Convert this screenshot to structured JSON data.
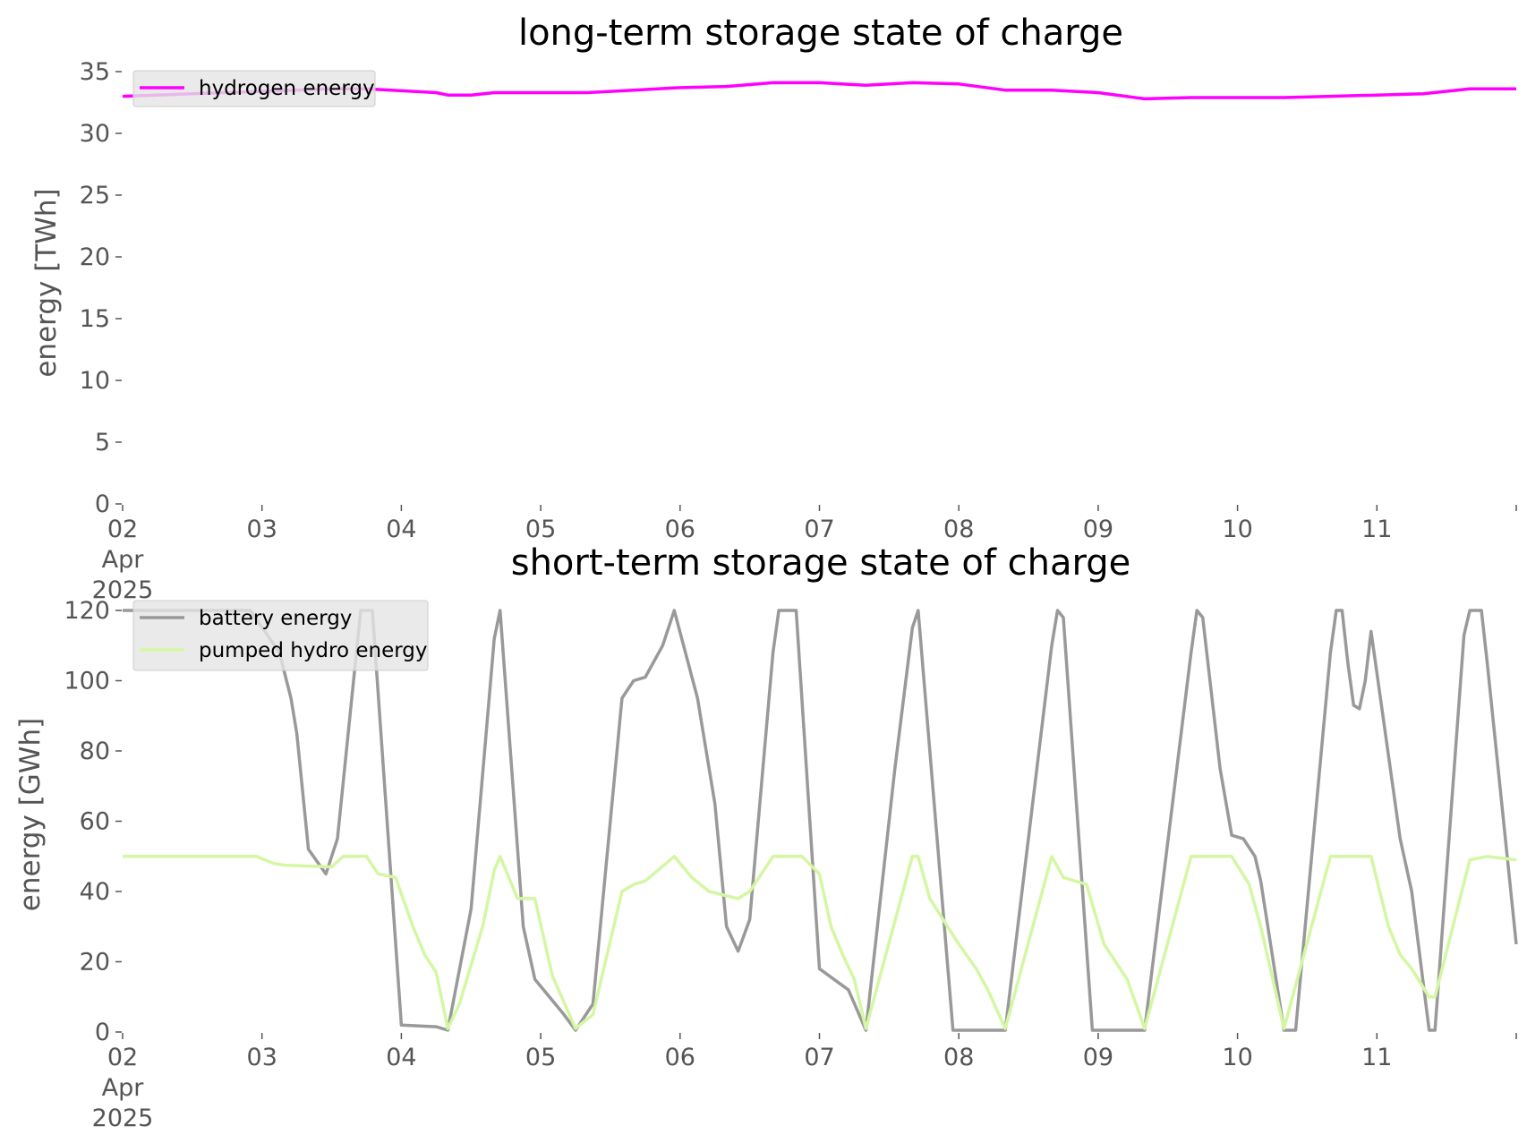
{
  "chart_data": [
    {
      "type": "line",
      "title": "long-term storage state of charge",
      "ylabel": "energy [TWh]",
      "ylim": [
        0,
        35
      ],
      "yticks": [
        "0",
        "5",
        "10",
        "15",
        "20",
        "25",
        "30",
        "35"
      ],
      "xlim": [
        "2025-04-02 00:00",
        "2025-04-12 00:00"
      ],
      "xticks": [
        {
          "date": "2025-04-02",
          "lines": [
            "02",
            "Apr",
            "2025"
          ]
        },
        {
          "date": "2025-04-03",
          "lines": [
            "03"
          ]
        },
        {
          "date": "2025-04-04",
          "lines": [
            "04"
          ]
        },
        {
          "date": "2025-04-05",
          "lines": [
            "05"
          ]
        },
        {
          "date": "2025-04-06",
          "lines": [
            "06"
          ]
        },
        {
          "date": "2025-04-07",
          "lines": [
            "07"
          ]
        },
        {
          "date": "2025-04-08",
          "lines": [
            "08"
          ]
        },
        {
          "date": "2025-04-09",
          "lines": [
            "09"
          ]
        },
        {
          "date": "2025-04-10",
          "lines": [
            "10"
          ]
        },
        {
          "date": "2025-04-11",
          "lines": [
            "11"
          ]
        }
      ],
      "grid": false,
      "legend_placement": "top-left",
      "series": [
        {
          "name": "hydrogen energy",
          "color": "#ff00ff",
          "points": [
            [
              "2025-04-02 00:00",
              33.0
            ],
            [
              "2025-04-02 12:00",
              33.2
            ],
            [
              "2025-04-03 00:00",
              33.4
            ],
            [
              "2025-04-03 12:00",
              33.6
            ],
            [
              "2025-04-03 18:00",
              33.6
            ],
            [
              "2025-04-04 06:00",
              33.3
            ],
            [
              "2025-04-04 08:00",
              33.1
            ],
            [
              "2025-04-04 12:00",
              33.1
            ],
            [
              "2025-04-04 16:00",
              33.3
            ],
            [
              "2025-04-05 00:00",
              33.3
            ],
            [
              "2025-04-05 08:00",
              33.3
            ],
            [
              "2025-04-05 16:00",
              33.5
            ],
            [
              "2025-04-06 00:00",
              33.7
            ],
            [
              "2025-04-06 08:00",
              33.8
            ],
            [
              "2025-04-06 16:00",
              34.1
            ],
            [
              "2025-04-07 00:00",
              34.1
            ],
            [
              "2025-04-07 08:00",
              33.9
            ],
            [
              "2025-04-07 16:00",
              34.1
            ],
            [
              "2025-04-08 00:00",
              34.0
            ],
            [
              "2025-04-08 08:00",
              33.5
            ],
            [
              "2025-04-08 16:00",
              33.5
            ],
            [
              "2025-04-09 00:00",
              33.3
            ],
            [
              "2025-04-09 08:00",
              32.8
            ],
            [
              "2025-04-09 16:00",
              32.9
            ],
            [
              "2025-04-10 00:00",
              32.9
            ],
            [
              "2025-04-10 08:00",
              32.9
            ],
            [
              "2025-04-10 16:00",
              33.0
            ],
            [
              "2025-04-11 00:00",
              33.1
            ],
            [
              "2025-04-11 08:00",
              33.2
            ],
            [
              "2025-04-11 16:00",
              33.6
            ],
            [
              "2025-04-12 00:00",
              33.6
            ]
          ]
        }
      ]
    },
    {
      "type": "line",
      "title": "short-term storage state of charge",
      "ylabel": "energy [GWh]",
      "ylim": [
        0,
        120
      ],
      "yticks": [
        "0",
        "20",
        "40",
        "60",
        "80",
        "100",
        "120"
      ],
      "xlim": [
        "2025-04-02 00:00",
        "2025-04-12 00:00"
      ],
      "xticks": [
        {
          "date": "2025-04-02",
          "lines": [
            "02",
            "Apr",
            "2025"
          ]
        },
        {
          "date": "2025-04-03",
          "lines": [
            "03"
          ]
        },
        {
          "date": "2025-04-04",
          "lines": [
            "04"
          ]
        },
        {
          "date": "2025-04-05",
          "lines": [
            "05"
          ]
        },
        {
          "date": "2025-04-06",
          "lines": [
            "06"
          ]
        },
        {
          "date": "2025-04-07",
          "lines": [
            "07"
          ]
        },
        {
          "date": "2025-04-08",
          "lines": [
            "08"
          ]
        },
        {
          "date": "2025-04-09",
          "lines": [
            "09"
          ]
        },
        {
          "date": "2025-04-10",
          "lines": [
            "10"
          ]
        },
        {
          "date": "2025-04-11",
          "lines": [
            "11"
          ]
        }
      ],
      "grid": false,
      "legend_placement": "top-left",
      "series": [
        {
          "name": "battery energy",
          "color": "#999999",
          "points": [
            [
              "2025-04-02 00:00",
              120
            ],
            [
              "2025-04-02 22:00",
              120
            ],
            [
              "2025-04-03 03:00",
              108
            ],
            [
              "2025-04-03 05:00",
              95
            ],
            [
              "2025-04-03 06:00",
              85
            ],
            [
              "2025-04-03 08:00",
              52
            ],
            [
              "2025-04-03 11:00",
              45
            ],
            [
              "2025-04-03 13:00",
              55
            ],
            [
              "2025-04-03 17:00",
              120
            ],
            [
              "2025-04-03 19:00",
              120
            ],
            [
              "2025-04-04 00:00",
              2
            ],
            [
              "2025-04-04 06:00",
              1.5
            ],
            [
              "2025-04-04 08:00",
              0.5
            ],
            [
              "2025-04-04 12:00",
              35
            ],
            [
              "2025-04-04 16:00",
              112
            ],
            [
              "2025-04-04 17:00",
              120
            ],
            [
              "2025-04-04 21:00",
              30
            ],
            [
              "2025-04-04 23:00",
              15
            ],
            [
              "2025-04-05 04:00",
              5
            ],
            [
              "2025-04-05 06:00",
              0.5
            ],
            [
              "2025-04-05 09:00",
              8
            ],
            [
              "2025-04-05 14:00",
              95
            ],
            [
              "2025-04-05 16:00",
              100
            ],
            [
              "2025-04-05 18:00",
              101
            ],
            [
              "2025-04-05 21:00",
              110
            ],
            [
              "2025-04-05 23:00",
              120
            ],
            [
              "2025-04-06 03:00",
              95
            ],
            [
              "2025-04-06 06:00",
              65
            ],
            [
              "2025-04-06 08:00",
              30
            ],
            [
              "2025-04-06 10:00",
              23
            ],
            [
              "2025-04-06 12:00",
              32
            ],
            [
              "2025-04-06 16:00",
              108
            ],
            [
              "2025-04-06 17:00",
              120
            ],
            [
              "2025-04-06 20:00",
              120
            ],
            [
              "2025-04-07 00:00",
              18
            ],
            [
              "2025-04-07 05:00",
              12
            ],
            [
              "2025-04-07 08:00",
              0.5
            ],
            [
              "2025-04-07 13:00",
              75
            ],
            [
              "2025-04-07 16:00",
              115
            ],
            [
              "2025-04-07 17:00",
              120
            ],
            [
              "2025-04-07 23:00",
              0.5
            ],
            [
              "2025-04-08 08:00",
              0.5
            ],
            [
              "2025-04-08 16:00",
              110
            ],
            [
              "2025-04-08 17:00",
              120
            ],
            [
              "2025-04-08 18:00",
              118
            ],
            [
              "2025-04-08 23:00",
              0.5
            ],
            [
              "2025-04-09 08:00",
              0.5
            ],
            [
              "2025-04-09 16:00",
              108
            ],
            [
              "2025-04-09 17:00",
              120
            ],
            [
              "2025-04-09 18:00",
              118
            ],
            [
              "2025-04-09 21:00",
              75
            ],
            [
              "2025-04-09 23:00",
              56
            ],
            [
              "2025-04-10 01:00",
              55
            ],
            [
              "2025-04-10 03:00",
              50
            ],
            [
              "2025-04-10 04:00",
              43
            ],
            [
              "2025-04-10 08:00",
              0.5
            ],
            [
              "2025-04-10 10:00",
              0.5
            ],
            [
              "2025-04-10 16:00",
              108
            ],
            [
              "2025-04-10 17:00",
              120
            ],
            [
              "2025-04-10 18:00",
              120
            ],
            [
              "2025-04-10 19:00",
              105
            ],
            [
              "2025-04-10 20:00",
              93
            ],
            [
              "2025-04-10 21:00",
              92
            ],
            [
              "2025-04-10 22:00",
              100
            ],
            [
              "2025-04-10 23:00",
              114
            ],
            [
              "2025-04-11 04:00",
              55
            ],
            [
              "2025-04-11 06:00",
              40
            ],
            [
              "2025-04-11 09:00",
              0.5
            ],
            [
              "2025-04-11 10:00",
              0.5
            ],
            [
              "2025-04-11 15:00",
              113
            ],
            [
              "2025-04-11 16:00",
              120
            ],
            [
              "2025-04-11 18:00",
              120
            ],
            [
              "2025-04-11 19:00",
              105
            ],
            [
              "2025-04-12 00:00",
              25
            ]
          ]
        },
        {
          "name": "pumped hydro energy",
          "color": "#d4f7a3",
          "points": [
            [
              "2025-04-02 00:00",
              50
            ],
            [
              "2025-04-02 23:00",
              50
            ],
            [
              "2025-04-03 02:00",
              48
            ],
            [
              "2025-04-03 04:00",
              47.5
            ],
            [
              "2025-04-03 12:00",
              47
            ],
            [
              "2025-04-03 14:00",
              50
            ],
            [
              "2025-04-03 18:00",
              50
            ],
            [
              "2025-04-03 20:00",
              45
            ],
            [
              "2025-04-03 23:00",
              44
            ],
            [
              "2025-04-04 02:00",
              30
            ],
            [
              "2025-04-04 04:00",
              22
            ],
            [
              "2025-04-04 06:00",
              17
            ],
            [
              "2025-04-04 08:00",
              1
            ],
            [
              "2025-04-04 10:00",
              8
            ],
            [
              "2025-04-04 14:00",
              30
            ],
            [
              "2025-04-04 16:00",
              46
            ],
            [
              "2025-04-04 17:00",
              50
            ],
            [
              "2025-04-04 19:00",
              42
            ],
            [
              "2025-04-04 20:00",
              38
            ],
            [
              "2025-04-04 23:00",
              38
            ],
            [
              "2025-04-05 02:00",
              16
            ],
            [
              "2025-04-05 06:00",
              1
            ],
            [
              "2025-04-05 09:00",
              5
            ],
            [
              "2025-04-05 14:00",
              40
            ],
            [
              "2025-04-05 16:00",
              42
            ],
            [
              "2025-04-05 18:00",
              43
            ],
            [
              "2025-04-05 23:00",
              50
            ],
            [
              "2025-04-06 02:00",
              44
            ],
            [
              "2025-04-06 05:00",
              40
            ],
            [
              "2025-04-06 10:00",
              38
            ],
            [
              "2025-04-06 12:00",
              40
            ],
            [
              "2025-04-06 16:00",
              50
            ],
            [
              "2025-04-06 21:00",
              50
            ],
            [
              "2025-04-07 00:00",
              45
            ],
            [
              "2025-04-07 02:00",
              30
            ],
            [
              "2025-04-07 04:00",
              22
            ],
            [
              "2025-04-07 06:00",
              15
            ],
            [
              "2025-04-07 08:00",
              1
            ],
            [
              "2025-04-07 16:00",
              50
            ],
            [
              "2025-04-07 17:00",
              50
            ],
            [
              "2025-04-07 19:00",
              38
            ],
            [
              "2025-04-08 00:00",
              25
            ],
            [
              "2025-04-08 03:00",
              18
            ],
            [
              "2025-04-08 05:00",
              12
            ],
            [
              "2025-04-08 08:00",
              1
            ],
            [
              "2025-04-08 16:00",
              50
            ],
            [
              "2025-04-08 18:00",
              44
            ],
            [
              "2025-04-08 22:00",
              42
            ],
            [
              "2025-04-09 01:00",
              25
            ],
            [
              "2025-04-09 05:00",
              15
            ],
            [
              "2025-04-09 08:00",
              1
            ],
            [
              "2025-04-09 16:00",
              50
            ],
            [
              "2025-04-09 23:00",
              50
            ],
            [
              "2025-04-10 02:00",
              42
            ],
            [
              "2025-04-10 04:00",
              30
            ],
            [
              "2025-04-10 08:00",
              1
            ],
            [
              "2025-04-10 16:00",
              50
            ],
            [
              "2025-04-10 23:00",
              50
            ],
            [
              "2025-04-11 02:00",
              30
            ],
            [
              "2025-04-11 04:00",
              22
            ],
            [
              "2025-04-11 06:00",
              18
            ],
            [
              "2025-04-11 09:00",
              10
            ],
            [
              "2025-04-11 10:00",
              10
            ],
            [
              "2025-04-11 16:00",
              49
            ],
            [
              "2025-04-11 19:00",
              50
            ],
            [
              "2025-04-12 00:00",
              49
            ]
          ]
        }
      ]
    }
  ]
}
